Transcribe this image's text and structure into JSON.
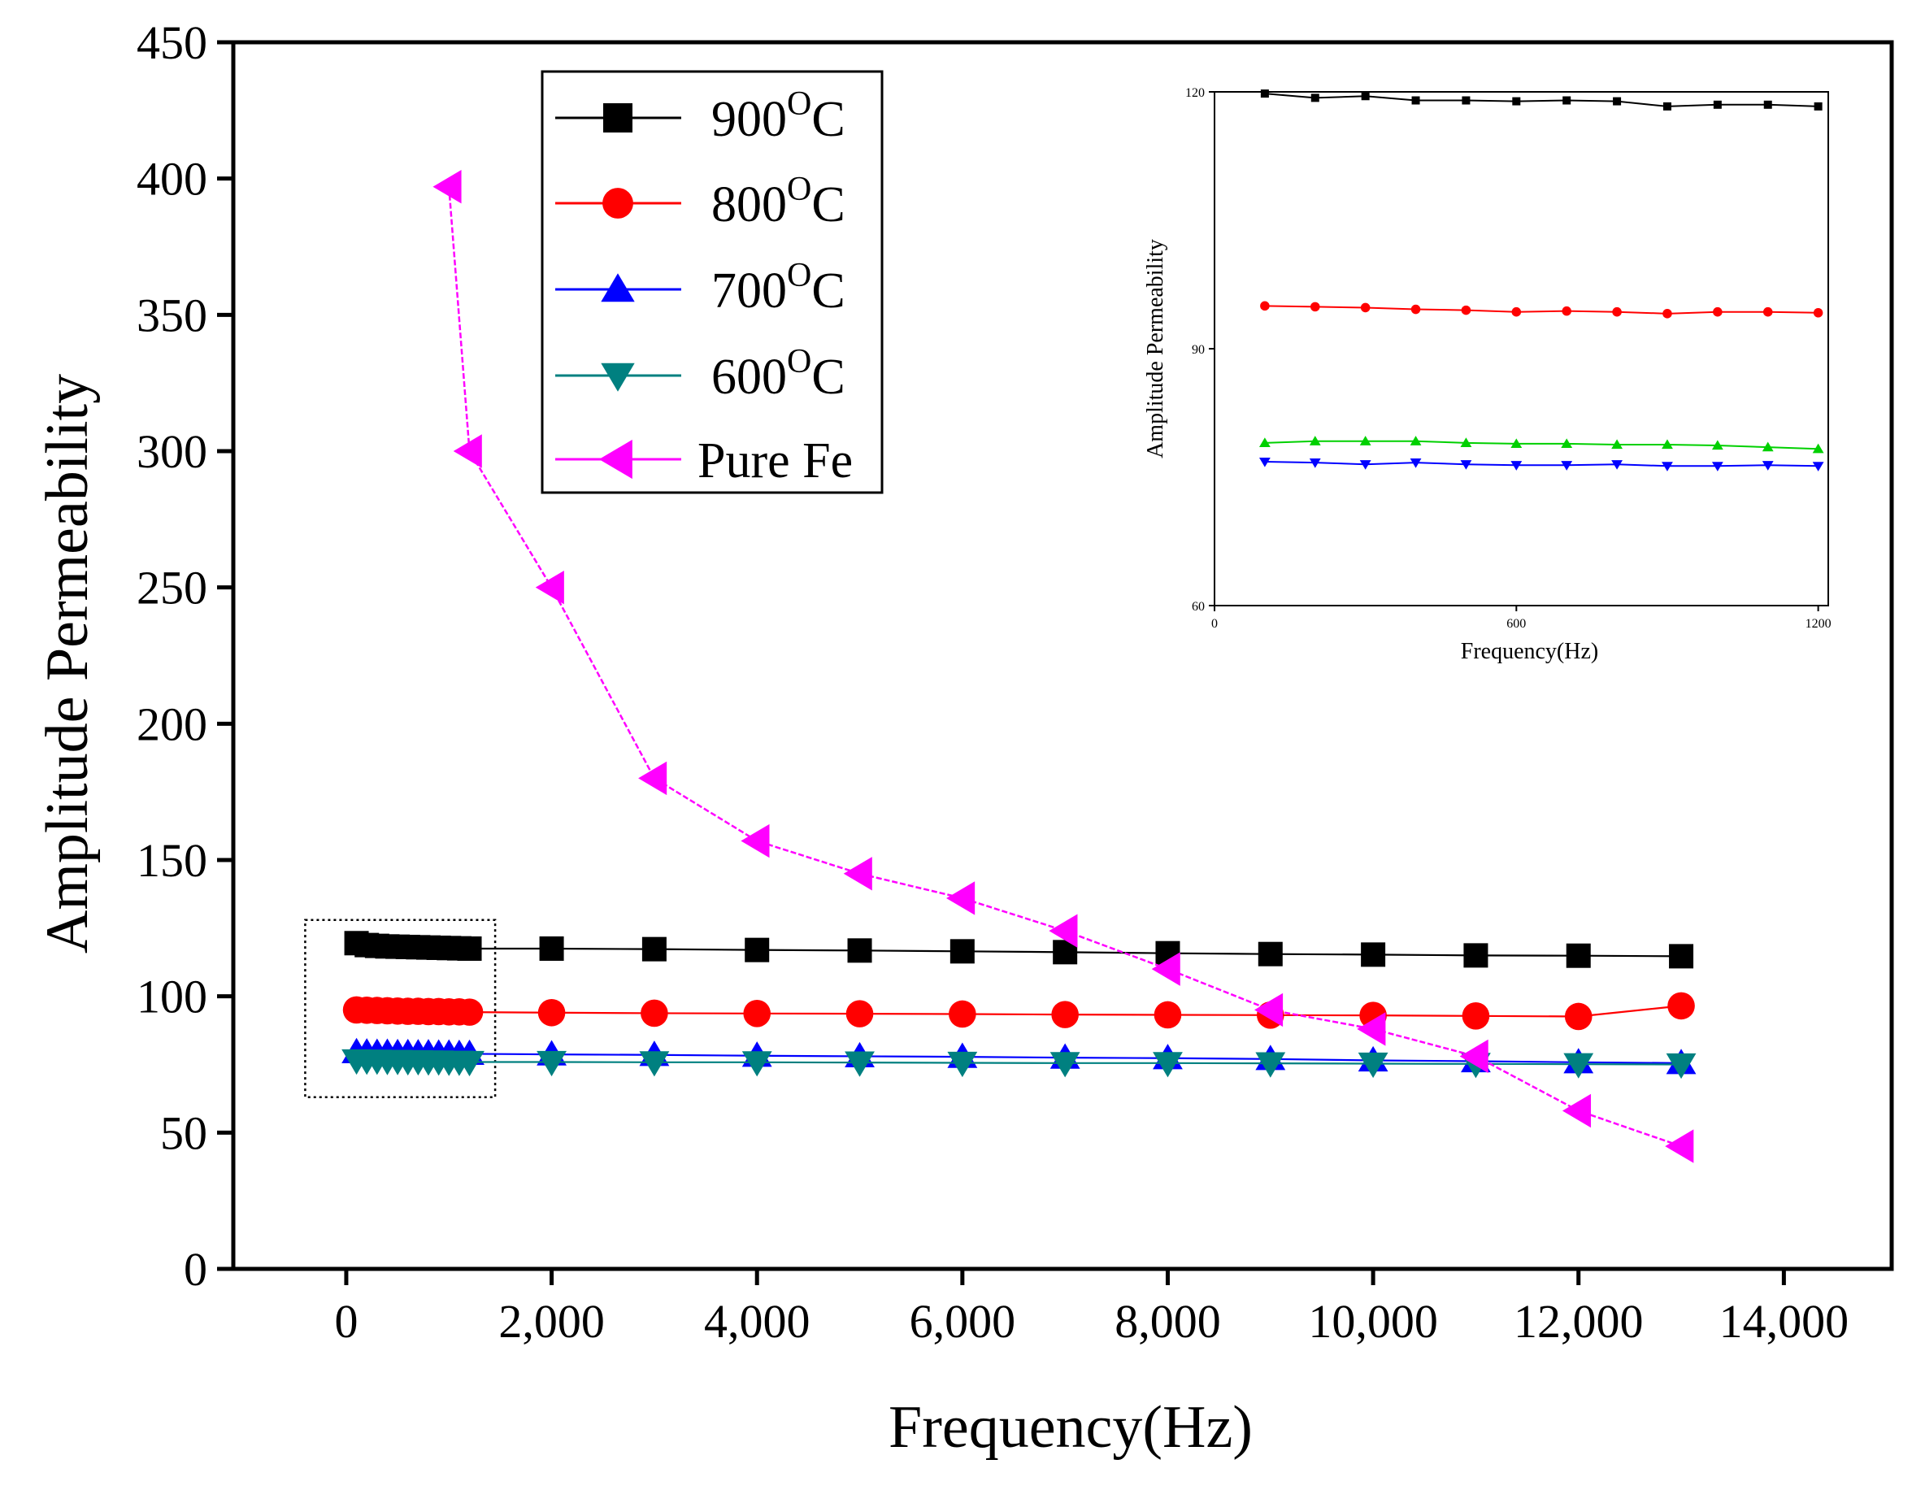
{
  "chart_data": {
    "type": "line",
    "xlabel": "Frequency(Hz)",
    "ylabel": "Amplitude Permeability",
    "xlim": [
      -1100,
      15050
    ],
    "ylim": [
      0,
      450
    ],
    "xticks": [
      0,
      2000,
      4000,
      6000,
      8000,
      10000,
      12000,
      14000
    ],
    "xtick_labels": [
      "0",
      "2,000",
      "4,000",
      "6,000",
      "8,000",
      "10,000",
      "12,000",
      "14,000"
    ],
    "yticks": [
      0,
      50,
      100,
      150,
      200,
      250,
      300,
      350,
      400,
      450
    ],
    "ytick_labels": [
      "0",
      "50",
      "100",
      "150",
      "200",
      "250",
      "300",
      "350",
      "400",
      "450"
    ],
    "legend_position": "top-left",
    "zoom_box": {
      "x": [
        -400,
        1450
      ],
      "y": [
        63,
        128
      ]
    },
    "series": [
      {
        "name": "900",
        "suffix": "C",
        "superscript": "O",
        "color": "#000000",
        "marker": "square",
        "x": [
          100,
          200,
          300,
          400,
          500,
          600,
          700,
          800,
          900,
          1000,
          1100,
          1200,
          2000,
          3000,
          4000,
          5000,
          6000,
          7000,
          8000,
          9000,
          10000,
          11000,
          12000,
          13000
        ],
        "y": [
          119.5,
          118.8,
          118.5,
          118.3,
          118.2,
          118.1,
          118.0,
          117.9,
          117.8,
          117.7,
          117.6,
          117.5,
          117.5,
          117.3,
          117.0,
          116.8,
          116.5,
          116.2,
          115.8,
          115.5,
          115.3,
          115.0,
          114.9,
          114.7
        ]
      },
      {
        "name": "800",
        "suffix": "C",
        "superscript": "O",
        "color": "#ff0000",
        "marker": "circle",
        "x": [
          100,
          200,
          300,
          400,
          500,
          600,
          700,
          800,
          900,
          1000,
          1100,
          1200,
          2000,
          3000,
          4000,
          5000,
          6000,
          7000,
          8000,
          9000,
          10000,
          11000,
          12000,
          13000
        ],
        "y": [
          95.0,
          94.9,
          94.8,
          94.7,
          94.6,
          94.5,
          94.5,
          94.4,
          94.4,
          94.3,
          94.3,
          94.2,
          94.0,
          93.8,
          93.7,
          93.6,
          93.5,
          93.3,
          93.2,
          93.1,
          93.0,
          92.8,
          92.6,
          96.5
        ]
      },
      {
        "name": "700",
        "suffix": "C",
        "superscript": "O",
        "color": "#0000ff",
        "marker": "triangle-up",
        "x": [
          100,
          200,
          300,
          400,
          500,
          600,
          700,
          800,
          900,
          1000,
          1100,
          1200,
          2000,
          3000,
          4000,
          5000,
          6000,
          7000,
          8000,
          9000,
          10000,
          11000,
          12000,
          13000
        ],
        "y": [
          79.5,
          79.4,
          79.3,
          79.3,
          79.2,
          79.2,
          79.1,
          79.1,
          79.0,
          79.0,
          78.9,
          78.9,
          78.7,
          78.5,
          78.2,
          78.0,
          77.8,
          77.5,
          77.3,
          77.0,
          76.5,
          76.2,
          75.8,
          75.5
        ]
      },
      {
        "name": "600",
        "suffix": "C",
        "superscript": "O",
        "color": "#008080",
        "marker": "triangle-down",
        "x": [
          100,
          200,
          300,
          400,
          500,
          600,
          700,
          800,
          900,
          1000,
          1100,
          1200,
          2000,
          3000,
          4000,
          5000,
          6000,
          7000,
          8000,
          9000,
          10000,
          11000,
          12000,
          13000
        ],
        "y": [
          76.5,
          76.4,
          76.4,
          76.3,
          76.3,
          76.2,
          76.2,
          76.1,
          76.1,
          76.0,
          76.0,
          75.9,
          75.9,
          75.8,
          75.8,
          75.7,
          75.6,
          75.5,
          75.5,
          75.4,
          75.3,
          75.2,
          75.1,
          75.0
        ]
      },
      {
        "name": "Pure Fe",
        "suffix": "",
        "superscript": "",
        "color": "#ff00ff",
        "marker": "triangle-left",
        "x": [
          1000,
          1200,
          2000,
          3000,
          4000,
          5000,
          6000,
          7000,
          8000,
          9000,
          10000,
          11000,
          12000,
          13000
        ],
        "y": [
          397,
          300,
          250,
          180,
          157,
          145,
          136,
          124,
          110,
          95,
          88,
          78,
          58,
          45
        ]
      }
    ],
    "inset": {
      "xlabel": "Frequency(Hz)",
      "ylabel": "Amplitude Permeability",
      "xlim": [
        0,
        1220
      ],
      "ylim": [
        60,
        120
      ],
      "xticks": [
        0,
        600,
        1200
      ],
      "yticks": [
        60,
        90,
        120
      ],
      "series": [
        {
          "name": "900",
          "color": "#000000",
          "marker": "square",
          "x": [
            100,
            200,
            300,
            400,
            500,
            600,
            700,
            800,
            900,
            1000,
            1100,
            1200
          ],
          "y": [
            119.8,
            119.3,
            119.5,
            119.0,
            119.0,
            118.9,
            119.0,
            118.9,
            118.3,
            118.5,
            118.5,
            118.3
          ]
        },
        {
          "name": "800",
          "color": "#ff0000",
          "marker": "circle",
          "x": [
            100,
            200,
            300,
            400,
            500,
            600,
            700,
            800,
            900,
            1000,
            1100,
            1200
          ],
          "y": [
            95.0,
            94.9,
            94.8,
            94.6,
            94.5,
            94.3,
            94.4,
            94.3,
            94.1,
            94.3,
            94.3,
            94.2
          ]
        },
        {
          "name": "600",
          "color": "#00d000",
          "marker": "triangle-up",
          "x": [
            100,
            200,
            300,
            400,
            500,
            600,
            700,
            800,
            900,
            1000,
            1100,
            1200
          ],
          "y": [
            79.0,
            79.2,
            79.2,
            79.2,
            79.0,
            78.9,
            78.9,
            78.8,
            78.8,
            78.7,
            78.5,
            78.3
          ]
        },
        {
          "name": "700",
          "color": "#0000ff",
          "marker": "triangle-down",
          "x": [
            100,
            200,
            300,
            400,
            500,
            600,
            700,
            800,
            900,
            1000,
            1100,
            1200
          ],
          "y": [
            76.8,
            76.7,
            76.5,
            76.7,
            76.5,
            76.4,
            76.4,
            76.5,
            76.3,
            76.3,
            76.4,
            76.3
          ]
        }
      ]
    }
  }
}
